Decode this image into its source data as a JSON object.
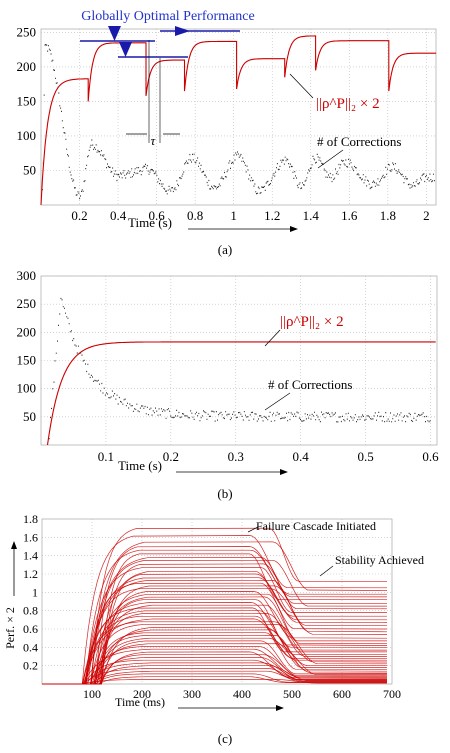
{
  "chart_data": [
    {
      "type": "scatter",
      "panel_label": "(a)",
      "xlabel": "Time (s)",
      "ylabel": "",
      "xlim": [
        0,
        2.05
      ],
      "ylim": [
        0,
        255
      ],
      "xticks": [
        0.2,
        0.4,
        0.6,
        0.8,
        1,
        1.2,
        1.4,
        1.6,
        1.8,
        2
      ],
      "yticks": [
        50,
        100,
        150,
        200,
        250
      ],
      "grid": true,
      "annotations": [
        "Globally Optimal Performance",
        "τ",
        "||ρ^P||₂ × 2",
        "# of Corrections"
      ],
      "series": [
        {
          "name": "||ρ^P||₂ × 2",
          "color": "#cc0000",
          "description": "performance metric with step changes at disturbance events",
          "segments": [
            {
              "t_start": 0.0,
              "t_end": 0.245,
              "from": 0,
              "to": 183
            },
            {
              "t_start": 0.245,
              "t_end": 0.545,
              "from": 150,
              "to": 235
            },
            {
              "t_start": 0.545,
              "t_end": 0.745,
              "from": 158,
              "to": 210
            },
            {
              "t_start": 0.745,
              "t_end": 1.015,
              "from": 165,
              "to": 237
            },
            {
              "t_start": 1.015,
              "t_end": 1.265,
              "from": 168,
              "to": 212
            },
            {
              "t_start": 1.265,
              "t_end": 1.425,
              "from": 185,
              "to": 245
            },
            {
              "t_start": 1.425,
              "t_end": 1.805,
              "from": 195,
              "to": 238
            },
            {
              "t_start": 1.805,
              "t_end": 2.05,
              "from": 165,
              "to": 220
            }
          ]
        },
        {
          "name": "# of Corrections",
          "color": "#222222",
          "description": "noisy count of corrections",
          "peaks": [
            {
              "t": 0.02,
              "value": 230
            },
            {
              "t": 0.26,
              "value": 88
            },
            {
              "t": 0.55,
              "value": 52
            },
            {
              "t": 0.78,
              "value": 68
            },
            {
              "t": 1.02,
              "value": 70
            },
            {
              "t": 1.27,
              "value": 65
            },
            {
              "t": 1.42,
              "value": 68
            },
            {
              "t": 1.58,
              "value": 62
            },
            {
              "t": 1.82,
              "value": 55
            },
            {
              "t": 2.0,
              "value": 40
            }
          ],
          "troughs": [
            {
              "t": 0.2,
              "value": 12
            },
            {
              "t": 0.4,
              "value": 42
            },
            {
              "t": 0.67,
              "value": 20
            },
            {
              "t": 0.9,
              "value": 25
            },
            {
              "t": 1.13,
              "value": 20
            },
            {
              "t": 1.35,
              "value": 25
            },
            {
              "t": 1.5,
              "value": 40
            },
            {
              "t": 1.72,
              "value": 30
            },
            {
              "t": 1.93,
              "value": 28
            }
          ]
        }
      ]
    },
    {
      "type": "scatter",
      "panel_label": "(b)",
      "xlabel": "Time (s)",
      "ylabel": "",
      "xlim": [
        0,
        0.61
      ],
      "ylim": [
        0,
        300
      ],
      "xticks": [
        0.1,
        0.2,
        0.3,
        0.4,
        0.5,
        0.6
      ],
      "yticks": [
        50,
        100,
        150,
        200,
        250,
        300
      ],
      "grid": true,
      "annotations": [
        "||ρ^P||₂ × 2",
        "# of Corrections"
      ],
      "series": [
        {
          "name": "||ρ^P||₂ × 2",
          "color": "#cc0000",
          "description": "rises from 0 at t=0.01 to plateau 183",
          "start": 0.01,
          "plateau": 183,
          "rise_time_s": 0.14
        },
        {
          "name": "# of Corrections",
          "color": "#222222",
          "description": "peaks ~262 near t=0.03 then decays to ~50",
          "peak_t": 0.03,
          "peak_value": 262,
          "steady_value": 50,
          "points": [
            [
              0.03,
              262
            ],
            [
              0.05,
              215
            ],
            [
              0.08,
              150
            ],
            [
              0.11,
              100
            ],
            [
              0.14,
              70
            ],
            [
              0.17,
              52
            ],
            [
              0.3,
              50
            ],
            [
              0.5,
              55
            ],
            [
              0.6,
              40
            ]
          ]
        }
      ]
    },
    {
      "type": "line",
      "panel_label": "(c)",
      "xlabel": "Time (ms)",
      "ylabel": "Perf. × 2",
      "xlim": [
        0,
        700
      ],
      "ylim": [
        0,
        1.8
      ],
      "xticks": [
        100,
        200,
        300,
        400,
        500,
        600,
        700
      ],
      "yticks": [
        0.2,
        0.4,
        0.6,
        0.8,
        1,
        1.2,
        1.4,
        1.6,
        1.8
      ],
      "grid": true,
      "annotations": [
        "Failure Cascade Initiated",
        "Stability Achieved"
      ],
      "series": [
        {
          "name": "",
          "color": "#cc0000",
          "description": "family of curves: rise 80–200 ms, plateau, failure cascade near 420 ms, settle by 520 ms",
          "rise_start_ms": 80,
          "plateau_reached_ms": 200,
          "cascade_start_ms": 420,
          "settled_ms": 520,
          "plateau_levels": [
            1.7,
            1.62,
            1.55,
            1.5,
            1.46,
            1.42,
            1.38,
            1.35,
            1.31,
            1.27,
            1.23,
            1.2,
            1.16,
            1.13,
            1.1,
            1.07,
            1.04,
            1.01,
            0.98,
            0.95,
            0.92,
            0.89,
            0.86,
            0.83,
            0.8,
            0.77,
            0.74,
            0.71,
            0.68,
            0.65,
            0.62,
            0.59,
            0.56,
            0.53,
            0.5,
            0.47,
            0.44,
            0.41,
            0.38,
            0.35,
            0.32,
            0.29,
            0.26,
            0.23,
            0.2,
            0.17,
            0.14,
            0.11,
            0.08,
            0.05
          ],
          "final_levels": [
            1.12,
            1.05,
            1.02,
            0.98,
            0.95,
            0.92,
            0.88,
            0.85,
            0.82,
            0.78,
            0.74,
            0.7,
            0.67,
            0.64,
            0.6,
            0.57,
            0.54,
            0.5,
            0.47,
            0.44,
            0.42,
            0.4,
            0.37,
            0.35,
            0.32,
            0.3,
            0.28,
            0.26,
            0.24,
            0.22,
            0.2,
            0.18,
            0.16,
            0.14,
            0.12,
            0.11,
            0.1,
            0.09,
            0.08,
            0.07,
            0.06,
            0.05,
            0.045,
            0.04,
            0.035,
            0.03,
            0.025,
            0.02,
            0.015,
            0.01
          ]
        }
      ]
    }
  ]
}
